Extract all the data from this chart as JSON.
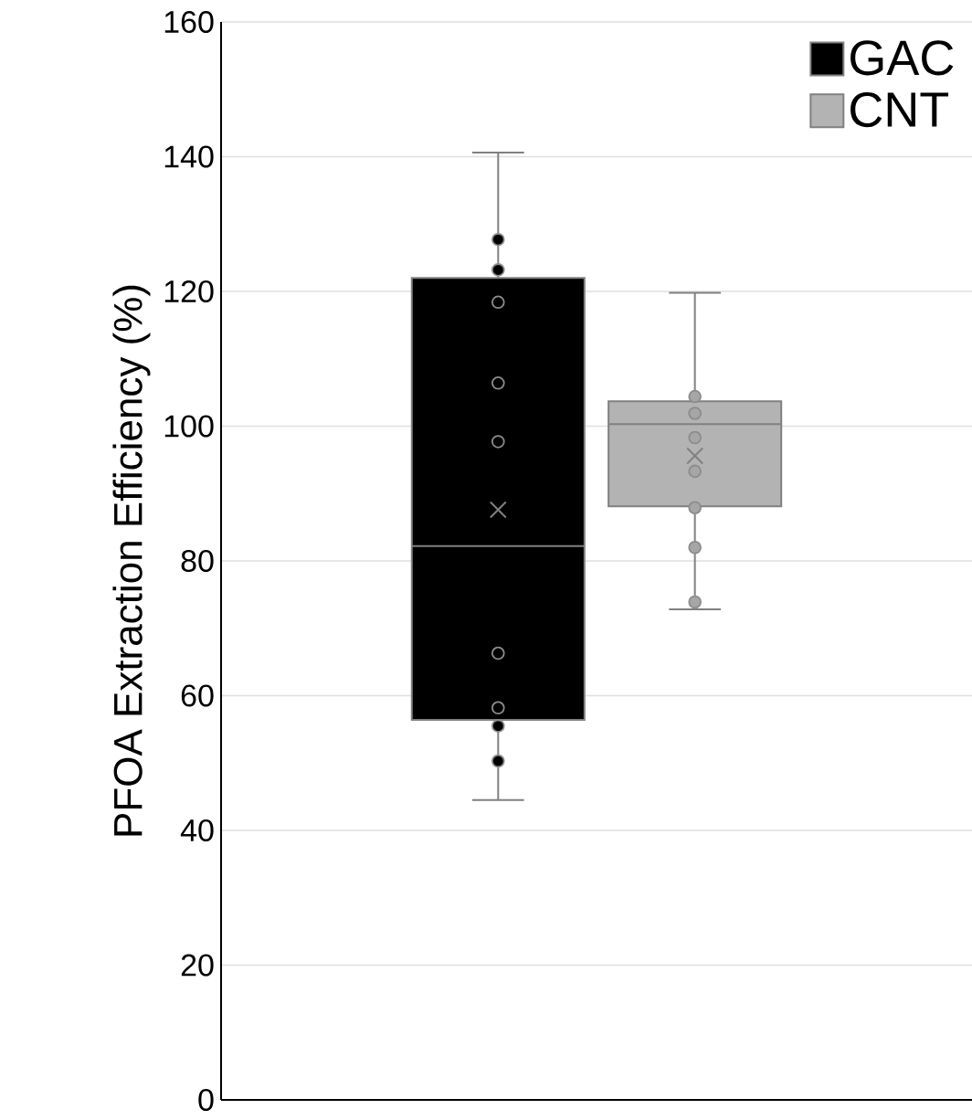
{
  "chart_data": {
    "type": "box",
    "ylabel": "PFOA Extraction Efficiency (%)",
    "categories": [
      null
    ],
    "ylim": [
      0,
      160
    ],
    "yticks": [
      0,
      20,
      40,
      60,
      80,
      100,
      120,
      140,
      160
    ],
    "grid": "y",
    "legend": "top right",
    "tick_labels": "y",
    "series": [
      {
        "name": "GAC",
        "color": "#000000",
        "boxes": [
          {
            "low": 44.5,
            "q1": 56.4,
            "median": 82.2,
            "q3": 122,
            "high": 140.6,
            "mean": 87.6
          }
        ]
      },
      {
        "name": "CNT",
        "color": "#b3b3b3",
        "boxes": [
          {
            "low": 72.8,
            "q1": 88.1,
            "median": 100.3,
            "q3": 103.7,
            "high": 119.8,
            "mean": 95.6
          }
        ]
      },
      {
        "type": "scatter",
        "marker": "circle",
        "color": "#000000",
        "x": [
          null,
          null,
          null,
          null,
          null,
          null,
          null,
          null,
          null
        ],
        "values": [
          127.7,
          123.2,
          118.4,
          106.4,
          97.7,
          66.3,
          58.2,
          55.5,
          50.3
        ]
      },
      {
        "type": "scatter",
        "marker": "circle",
        "color": "#a6a6a6",
        "x": [
          null,
          null,
          null,
          null,
          null,
          null,
          null
        ],
        "values": [
          104.4,
          101.9,
          98.3,
          93.3,
          87.9,
          82,
          73.9
        ]
      }
    ]
  }
}
